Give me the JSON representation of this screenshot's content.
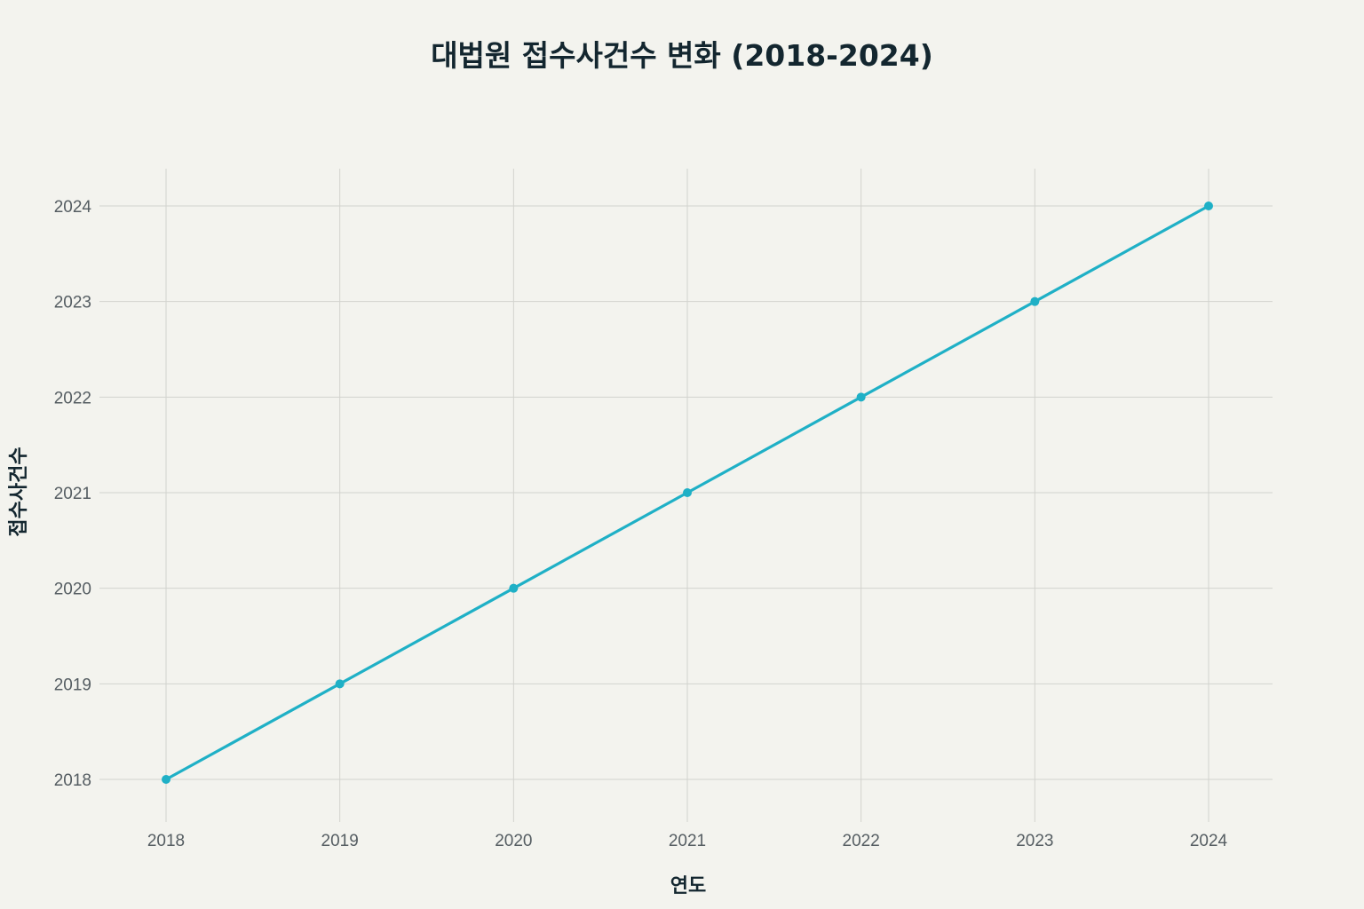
{
  "chart_data": {
    "type": "line",
    "title": "대법원 접수사건수 변화 (2018-2024)",
    "xlabel": "연도",
    "ylabel": "접수사건수",
    "x": [
      2018,
      2019,
      2020,
      2021,
      2022,
      2023,
      2024
    ],
    "series": [
      {
        "values": [
          2018,
          2019,
          2020,
          2021,
          2022,
          2023,
          2024
        ]
      }
    ],
    "x_ticks": [
      "2018",
      "2019",
      "2020",
      "2021",
      "2022",
      "2023",
      "2024"
    ],
    "y_ticks": [
      "2018",
      "2019",
      "2020",
      "2021",
      "2022",
      "2023",
      "2024"
    ],
    "xlim": [
      2018,
      2024
    ],
    "ylim": [
      2018,
      2024
    ],
    "grid": true,
    "legend": "none",
    "colors": {
      "series": "#1fb0c6",
      "background": "#f3f3ee"
    }
  }
}
